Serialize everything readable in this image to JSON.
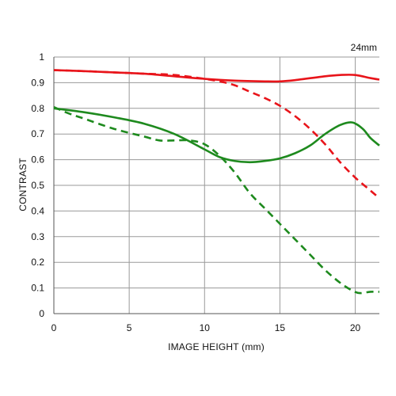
{
  "chart_data": {
    "type": "line",
    "annotation": "24mm",
    "xlabel": "IMAGE HEIGHT (mm)",
    "ylabel": "CONTRAST",
    "xlim": [
      0,
      21.6
    ],
    "ylim": [
      0,
      1
    ],
    "x_ticks": [
      0,
      5,
      10,
      15,
      20
    ],
    "x_tick_labels": [
      "0",
      "5",
      "10",
      "15",
      "20"
    ],
    "x_gridlines": [
      0,
      5,
      10,
      15,
      20
    ],
    "y_ticks": [
      0,
      0.1,
      0.2,
      0.3,
      0.4,
      0.5,
      0.6,
      0.7,
      0.8,
      0.9,
      1
    ],
    "y_tick_labels": [
      "0",
      "0.1",
      "0.2",
      "0.3",
      "0.4",
      "0.5",
      "0.6",
      "0.7",
      "0.8",
      "0.9",
      "1"
    ],
    "grid": true,
    "legend": "none",
    "series": [
      {
        "color": "#e8141a",
        "style": "solid",
        "x": [
          0,
          2,
          4,
          6,
          8,
          10,
          12,
          14,
          15,
          16,
          18,
          19,
          20,
          21,
          21.6
        ],
        "y": [
          0.949,
          0.945,
          0.94,
          0.935,
          0.925,
          0.915,
          0.908,
          0.905,
          0.905,
          0.91,
          0.925,
          0.93,
          0.93,
          0.918,
          0.912
        ]
      },
      {
        "color": "#e8141a",
        "style": "dashed",
        "x": [
          0,
          2,
          4,
          6,
          8,
          10,
          11,
          12,
          13,
          14,
          15,
          16,
          17,
          18,
          19,
          20,
          21,
          21.6
        ],
        "y": [
          0.949,
          0.945,
          0.94,
          0.935,
          0.93,
          0.915,
          0.905,
          0.89,
          0.865,
          0.84,
          0.81,
          0.77,
          0.72,
          0.66,
          0.59,
          0.53,
          0.48,
          0.45
        ]
      },
      {
        "color": "#1e8a1e",
        "style": "solid",
        "x": [
          0,
          2,
          4,
          6,
          8,
          10,
          11,
          12,
          13,
          14,
          15,
          16,
          17,
          18,
          19,
          19.8,
          20.5,
          21,
          21.6
        ],
        "y": [
          0.8,
          0.785,
          0.765,
          0.74,
          0.7,
          0.64,
          0.61,
          0.595,
          0.59,
          0.595,
          0.605,
          0.625,
          0.655,
          0.7,
          0.735,
          0.745,
          0.72,
          0.685,
          0.655
        ]
      },
      {
        "color": "#1e8a1e",
        "style": "dashed",
        "x": [
          0,
          1,
          2,
          4,
          6,
          7,
          8,
          9,
          10,
          11,
          12,
          13,
          14,
          15,
          16,
          17,
          18,
          19,
          19.8,
          20.3,
          21,
          21.6
        ],
        "y": [
          0.805,
          0.78,
          0.76,
          0.72,
          0.69,
          0.675,
          0.675,
          0.675,
          0.66,
          0.615,
          0.55,
          0.47,
          0.41,
          0.35,
          0.29,
          0.23,
          0.17,
          0.12,
          0.09,
          0.08,
          0.085,
          0.085
        ]
      }
    ]
  }
}
